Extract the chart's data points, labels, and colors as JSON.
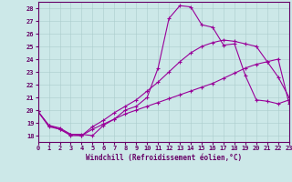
{
  "xlabel": "Windchill (Refroidissement éolien,°C)",
  "background_color": "#cce8e8",
  "line_color": "#990099",
  "grid_color": "#aacccc",
  "xlim": [
    0,
    23
  ],
  "ylim": [
    17.5,
    28.5
  ],
  "xticks": [
    0,
    1,
    2,
    3,
    4,
    5,
    6,
    7,
    8,
    9,
    10,
    11,
    12,
    13,
    14,
    15,
    16,
    17,
    18,
    19,
    20,
    21,
    22,
    23
  ],
  "yticks": [
    18,
    19,
    20,
    21,
    22,
    23,
    24,
    25,
    26,
    27,
    28
  ],
  "line1_x": [
    0,
    1,
    2,
    3,
    4,
    5,
    6,
    7,
    8,
    9,
    10,
    11,
    12,
    13,
    14,
    15,
    16,
    17,
    18,
    19,
    20,
    21,
    22,
    23
  ],
  "line1_y": [
    19.9,
    18.8,
    18.6,
    18.1,
    18.1,
    18.0,
    18.8,
    19.3,
    20.0,
    20.3,
    21.0,
    23.3,
    27.2,
    28.2,
    28.1,
    26.7,
    26.5,
    25.1,
    25.2,
    22.7,
    20.8,
    20.7,
    20.5,
    20.8
  ],
  "line2_x": [
    0,
    1,
    2,
    3,
    4,
    5,
    6,
    7,
    8,
    9,
    10,
    11,
    12,
    13,
    14,
    15,
    16,
    17,
    18,
    19,
    20,
    21,
    22,
    23
  ],
  "line2_y": [
    19.9,
    18.8,
    18.5,
    18.1,
    18.0,
    18.7,
    19.2,
    19.8,
    20.3,
    20.8,
    21.5,
    22.2,
    23.0,
    23.8,
    24.5,
    25.0,
    25.3,
    25.5,
    25.4,
    25.2,
    25.0,
    23.8,
    22.6,
    21.0
  ],
  "line3_x": [
    0,
    1,
    2,
    3,
    4,
    5,
    6,
    7,
    8,
    9,
    10,
    11,
    12,
    13,
    14,
    15,
    16,
    17,
    18,
    19,
    20,
    21,
    22,
    23
  ],
  "line3_y": [
    19.9,
    18.7,
    18.5,
    18.0,
    18.0,
    18.5,
    18.9,
    19.3,
    19.7,
    20.0,
    20.3,
    20.6,
    20.9,
    21.2,
    21.5,
    21.8,
    22.1,
    22.5,
    22.9,
    23.3,
    23.6,
    23.8,
    24.0,
    20.5
  ]
}
